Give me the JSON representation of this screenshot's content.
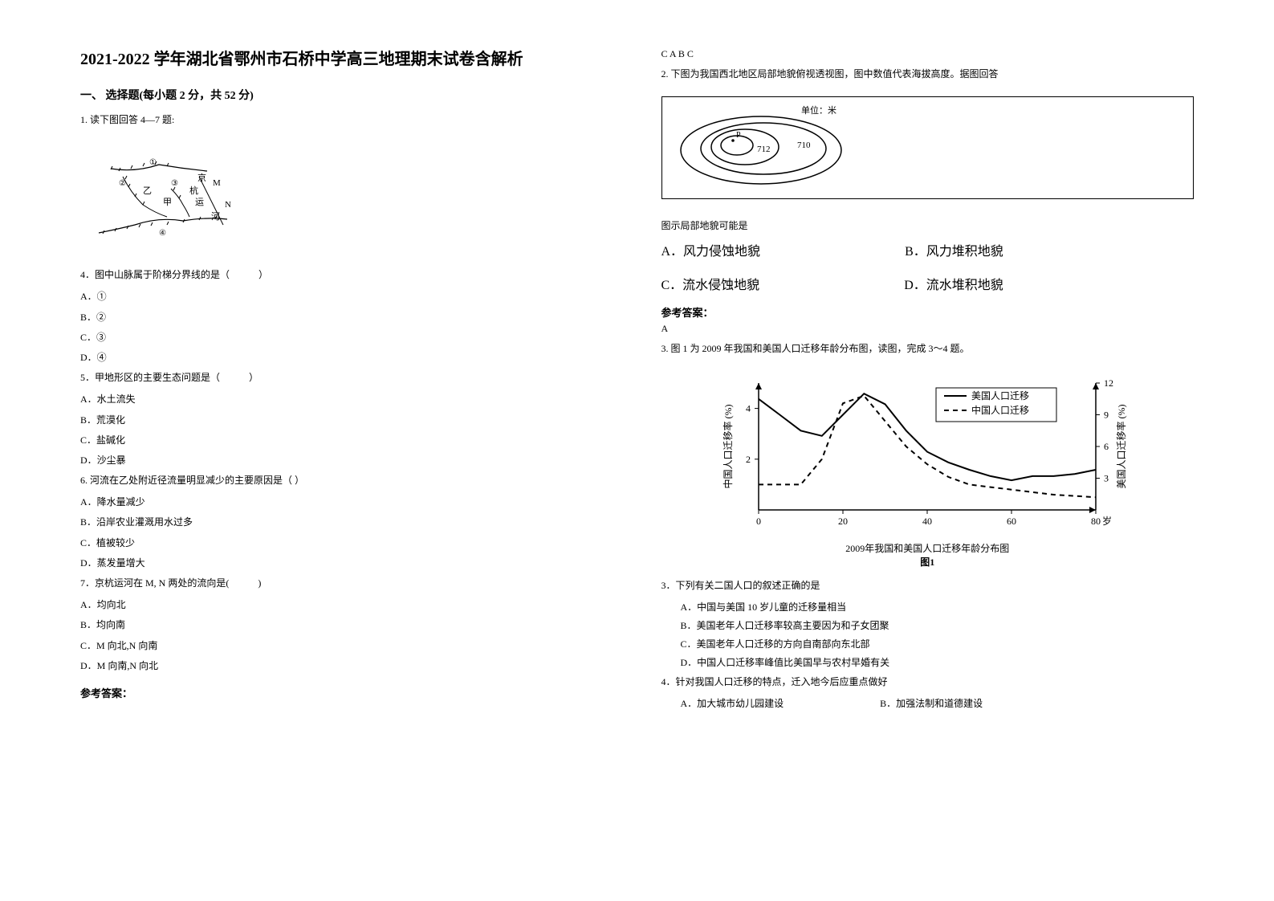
{
  "title": "2021-2022 学年湖北省鄂州市石桥中学高三地理期末试卷含解析",
  "section1": "一、 选择题(每小题 2 分，共 52 分)",
  "q1": {
    "stem": "1. 读下图回答 4—7 题:",
    "map": {
      "labels": [
        "京",
        "杭",
        "运",
        "河",
        "M",
        "N",
        "甲",
        "乙"
      ],
      "markers": [
        "①",
        "②",
        "③",
        "④"
      ]
    },
    "q4": {
      "stem": "4．图中山脉属于阶梯分界线的是（　　　）",
      "options": [
        "A．①",
        "B．②",
        "C．③",
        "D．④"
      ]
    },
    "q5": {
      "stem": "5．甲地形区的主要生态问题是（　　　）",
      "options": [
        "A．水土流失",
        "B．荒漠化",
        "  C．盐碱化",
        "D．沙尘暴"
      ]
    },
    "q6": {
      "stem": "6. 河流在乙处附近径流量明显减少的主要原因是（    ）",
      "options": [
        "A．降水量减少",
        "B．沿岸农业灌溉用水过多",
        "C．植被较少",
        "D．蒸发量增大"
      ]
    },
    "q7": {
      "stem": "7．京杭运河在 M, N 两处的流向是(　　　)",
      "options": [
        "A．均向北",
        "B．均向南",
        "C．M 向北,N 向南",
        "D．M 向南,N 向北"
      ]
    },
    "answer_label": "参考答案：",
    "answer": "C  A  B  C"
  },
  "q2": {
    "stem": "2. 下图为我国西北地区局部地貌俯视透视图，图中数值代表海拔高度。据图回答",
    "contour": {
      "unit_label": "单位：米",
      "values": [
        "712",
        "710"
      ],
      "point": "P"
    },
    "sub_stem": "图示局部地貌可能是",
    "options": {
      "A": "A．风力侵蚀地貌",
      "B": "B．风力堆积地貌",
      "C": "C．流水侵蚀地貌",
      "D": "D．流水堆积地貌"
    },
    "answer_label": "参考答案：",
    "answer": "A"
  },
  "q3": {
    "stem": "3.   图 1 为 2009 年我国和美国人口迁移年龄分布图，读图，完成 3～4 题。",
    "chart": {
      "type": "line",
      "x_label": "岁",
      "x_ticks": [
        0,
        20,
        40,
        60,
        80
      ],
      "y_left_label": "中国人口迁移率 (%)",
      "y_left_ticks": [
        2,
        4
      ],
      "y_right_label": "美国人口迁移率 (%)",
      "y_right_ticks": [
        3,
        6,
        9,
        12
      ],
      "series": [
        {
          "name": "美国人口迁移",
          "style": "solid",
          "points": [
            [
              0,
              10.5
            ],
            [
              5,
              9
            ],
            [
              10,
              7.5
            ],
            [
              15,
              7
            ],
            [
              20,
              9
            ],
            [
              25,
              11
            ],
            [
              30,
              10
            ],
            [
              35,
              7.5
            ],
            [
              40,
              5.5
            ],
            [
              45,
              4.5
            ],
            [
              50,
              3.8
            ],
            [
              55,
              3.2
            ],
            [
              60,
              2.8
            ],
            [
              65,
              3.2
            ],
            [
              70,
              3.2
            ],
            [
              75,
              3.4
            ],
            [
              80,
              3.8
            ]
          ]
        },
        {
          "name": "中国人口迁移",
          "style": "dashed",
          "points": [
            [
              0,
              1
            ],
            [
              5,
              1
            ],
            [
              10,
              1
            ],
            [
              15,
              2
            ],
            [
              20,
              4.2
            ],
            [
              25,
              4.5
            ],
            [
              30,
              3.5
            ],
            [
              35,
              2.5
            ],
            [
              40,
              1.8
            ],
            [
              45,
              1.3
            ],
            [
              50,
              1
            ],
            [
              55,
              0.9
            ],
            [
              60,
              0.8
            ],
            [
              65,
              0.7
            ],
            [
              70,
              0.6
            ],
            [
              75,
              0.55
            ],
            [
              80,
              0.5
            ]
          ]
        }
      ],
      "caption_below": "2009年我国和美国人口迁移年龄分布图",
      "figure_label": "图1",
      "color": "#000000",
      "bg": "#ffffff"
    },
    "q3sub": {
      "stem": "3．下列有关二国人口的叙述正确的是",
      "options": [
        "A．中国与美国 10 岁儿童的迁移量相当",
        "B．美国老年人口迁移率较高主要因为和子女团聚",
        "C．美国老年人口迁移的方向自南部向东北部",
        "D．中国人口迁移率峰值比美国早与农村早婚有关"
      ]
    },
    "q4sub": {
      "stem": "4．针对我国人口迁移的特点，迁入地今后应重点做好",
      "options": {
        "A": "A．加大城市幼儿园建设",
        "B": "B．加强法制和道德建设"
      }
    }
  }
}
